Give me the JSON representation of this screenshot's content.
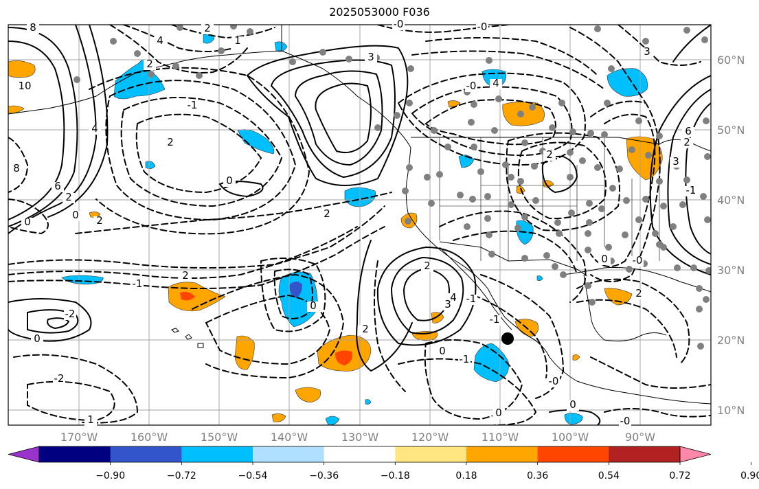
{
  "title": "2025053000 F036",
  "lon_labels": [
    "170°W",
    "160°W",
    "150°W",
    "140°W",
    "130°W",
    "120°W",
    "110°W",
    "100°W",
    "90°W"
  ],
  "lat_labels": [
    "60°N",
    "50°N",
    "40°N",
    "30°N",
    "20°N",
    "10°N"
  ],
  "colorbar": {
    "ticks": [
      "−0.90",
      "−0.72",
      "−0.54",
      "−0.36",
      "−0.18",
      "0.18",
      "0.36",
      "0.54",
      "0.72",
      "0.90"
    ],
    "colors": [
      "#9933cc",
      "#000080",
      "#3355cc",
      "#00bfff",
      "#b0e0ff",
      "#ffffff",
      "#ffe680",
      "#ffa500",
      "#ff4500",
      "#b22222",
      "#ff88aa"
    ]
  },
  "contour_labels": [
    {
      "text": "8"
    },
    {
      "text": "10"
    },
    {
      "text": "4"
    },
    {
      "text": "8"
    },
    {
      "text": "6"
    },
    {
      "text": "2"
    },
    {
      "text": "0"
    },
    {
      "text": "2"
    },
    {
      "text": "4"
    },
    {
      "text": "2"
    },
    {
      "text": "1"
    },
    {
      "text": "2"
    },
    {
      "text": "-1"
    },
    {
      "text": "-0"
    },
    {
      "text": "3"
    },
    {
      "text": "-1"
    },
    {
      "text": "0"
    },
    {
      "text": "-0"
    },
    {
      "text": "3"
    },
    {
      "text": "4"
    },
    {
      "text": "-0"
    },
    {
      "text": "2"
    },
    {
      "text": "0"
    },
    {
      "text": "6"
    },
    {
      "text": "3"
    },
    {
      "text": "2"
    },
    {
      "text": "-1"
    },
    {
      "text": "2"
    },
    {
      "text": "2"
    },
    {
      "text": "-2"
    },
    {
      "text": "0"
    },
    {
      "text": "-2"
    },
    {
      "text": "1"
    },
    {
      "text": "2"
    },
    {
      "text": "4"
    },
    {
      "text": "3"
    },
    {
      "text": "2"
    },
    {
      "text": "0"
    },
    {
      "text": "-1"
    },
    {
      "text": "0"
    },
    {
      "text": "-0"
    },
    {
      "text": "-0"
    },
    {
      "text": "0"
    },
    {
      "text": "0"
    },
    {
      "text": "2"
    },
    {
      "text": "-0"
    },
    {
      "text": "-1"
    },
    {
      "text": "0"
    },
    {
      "text": "-1"
    },
    {
      "text": "2"
    }
  ]
}
